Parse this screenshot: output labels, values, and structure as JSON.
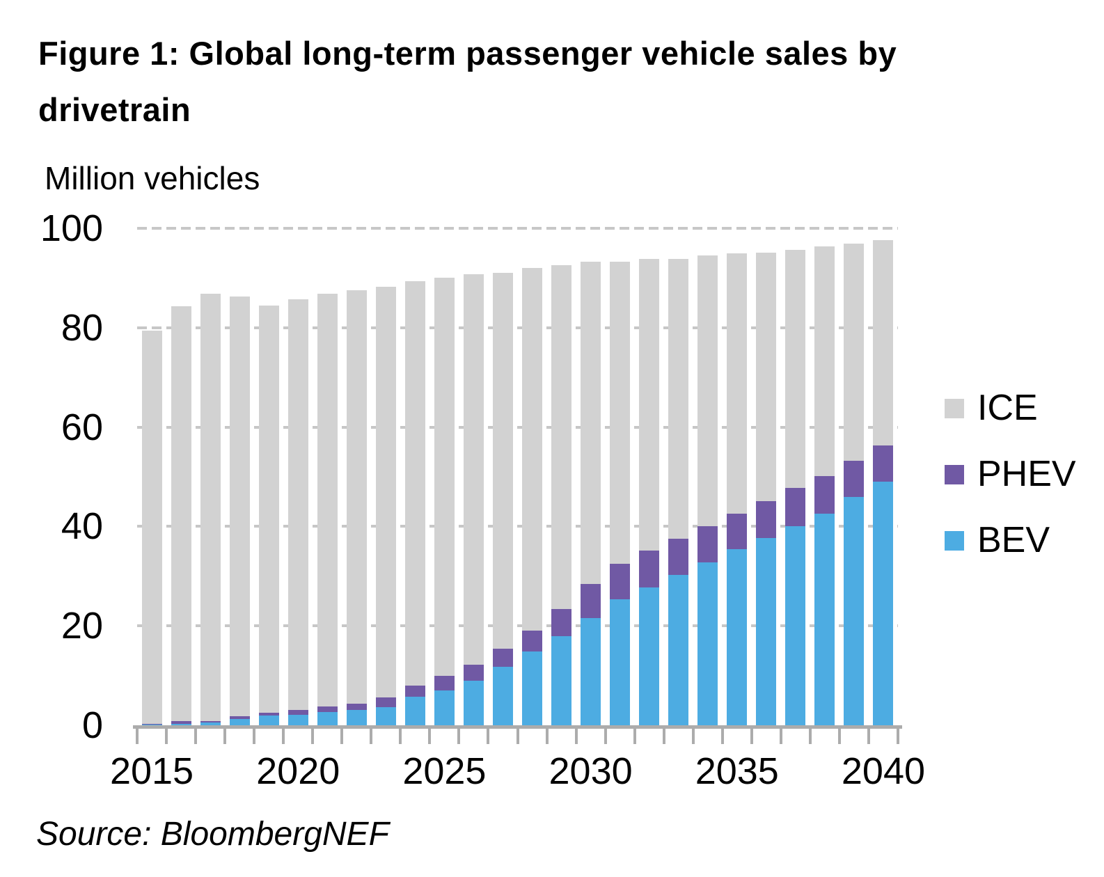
{
  "title": "Figure 1: Global long-term passenger vehicle sales by drivetrain",
  "y_axis_label": "Million vehicles",
  "source": "Source: BloombergNEF",
  "colors": {
    "ice": "#d2d2d2",
    "phev": "#7059a4",
    "bev": "#4dace2",
    "axis": "#acacac",
    "gridline": "#c7c7c7",
    "text": "#000000"
  },
  "legend": [
    {
      "label": "ICE",
      "color": "#d2d2d2"
    },
    {
      "label": "PHEV",
      "color": "#7059a4"
    },
    {
      "label": "BEV",
      "color": "#4dace2"
    }
  ],
  "chart_data": {
    "type": "bar",
    "stacked": true,
    "title": "Figure 1: Global long-term passenger vehicle sales by drivetrain",
    "xlabel": "",
    "ylabel": "Million vehicles",
    "ylim": [
      0,
      100
    ],
    "y_ticks": [
      0,
      20,
      40,
      60,
      80,
      100
    ],
    "x_tick_labels": [
      "2015",
      "2020",
      "2025",
      "2030",
      "2035",
      "2040"
    ],
    "grid": "horizontal-dashed",
    "legend_position": "right",
    "categories": [
      2015,
      2016,
      2017,
      2018,
      2019,
      2020,
      2021,
      2022,
      2023,
      2024,
      2025,
      2026,
      2027,
      2028,
      2029,
      2030,
      2031,
      2032,
      2033,
      2034,
      2035,
      2036,
      2037,
      2038,
      2039,
      2040
    ],
    "series": [
      {
        "name": "BEV",
        "color": "#4dace2",
        "values": [
          0.2,
          0.3,
          0.6,
          1.3,
          1.9,
          2.1,
          2.6,
          3.1,
          3.7,
          5.7,
          7.0,
          9.0,
          11.8,
          14.8,
          17.9,
          21.6,
          25.3,
          27.7,
          30.2,
          32.8,
          35.4,
          37.7,
          40.0,
          42.6,
          45.9,
          49.0
        ]
      },
      {
        "name": "PHEV",
        "color": "#7059a4",
        "values": [
          0.1,
          0.5,
          0.3,
          0.5,
          0.6,
          1.0,
          1.2,
          1.2,
          1.9,
          2.3,
          2.9,
          3.2,
          3.6,
          4.2,
          5.5,
          6.8,
          7.2,
          7.5,
          7.4,
          7.3,
          7.2,
          7.4,
          7.7,
          7.5,
          7.3,
          7.3
        ]
      },
      {
        "name": "ICE",
        "color": "#d2d2d2",
        "values": [
          79.1,
          83.5,
          86.0,
          84.5,
          81.9,
          82.6,
          83.1,
          83.3,
          82.6,
          81.4,
          80.1,
          78.5,
          75.7,
          73.0,
          69.2,
          64.9,
          60.8,
          58.6,
          56.3,
          54.4,
          52.4,
          50.0,
          48.0,
          46.2,
          43.7,
          41.3
        ]
      }
    ]
  }
}
